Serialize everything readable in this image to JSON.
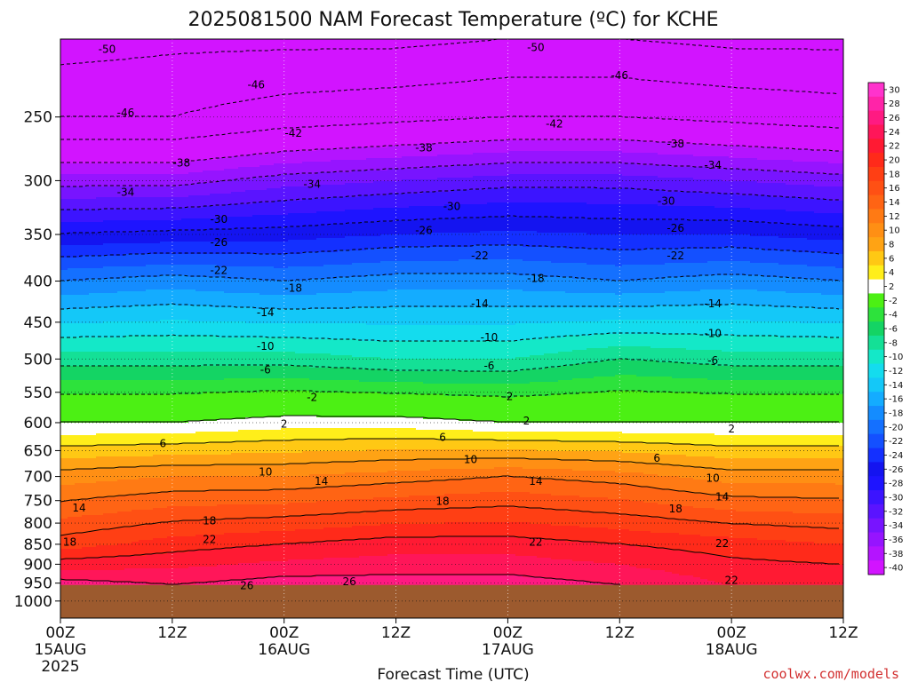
{
  "chart_data": {
    "type": "heatmap",
    "title": "2025081500 NAM Forecast Temperature (ºC) for KCHE",
    "xlabel": "Forecast Time (UTC)",
    "ylabel": "",
    "y_scale": "log-pressure (hPa, inverted)",
    "ylim": [
      1050,
      200
    ],
    "xlim": [
      0,
      84
    ],
    "x_ticks": [
      {
        "hour": 0,
        "label": "00Z",
        "sub": "15AUG",
        "sub2": "2025"
      },
      {
        "hour": 12,
        "label": "12Z"
      },
      {
        "hour": 24,
        "label": "00Z",
        "sub": "16AUG"
      },
      {
        "hour": 36,
        "label": "12Z"
      },
      {
        "hour": 48,
        "label": "00Z",
        "sub": "17AUG"
      },
      {
        "hour": 60,
        "label": "12Z"
      },
      {
        "hour": 72,
        "label": "00Z",
        "sub": "18AUG"
      },
      {
        "hour": 84,
        "label": "12Z"
      }
    ],
    "y_ticks": [
      250,
      300,
      350,
      400,
      450,
      500,
      550,
      600,
      650,
      700,
      750,
      800,
      850,
      900,
      950,
      1000
    ],
    "surface_pressure_hpa": 955,
    "grid": true,
    "colorbar": {
      "position": "right",
      "levels": [
        "30",
        "28",
        "26",
        "24",
        "22",
        "20",
        "18",
        "16",
        "14",
        "12",
        "10",
        "8",
        "6",
        "4",
        "2",
        "-2",
        "-4",
        "-6",
        "-8",
        "-10",
        "-12",
        "-14",
        "-16",
        "-18",
        "-20",
        "-22",
        "-24",
        "-26",
        "-28",
        "-30",
        "-32",
        "-34",
        "-36",
        "-38",
        "-40"
      ],
      "colors": [
        "#ff33cc",
        "#ff24a8",
        "#ff1a82",
        "#ff1659",
        "#ff1a33",
        "#ff2a1a",
        "#ff3f14",
        "#ff5014",
        "#ff6414",
        "#ff7a14",
        "#ff8f14",
        "#ffa314",
        "#ffc814",
        "#ffee1a",
        "#ffffff",
        "#4cf014",
        "#2de23c",
        "#14d464",
        "#14e096",
        "#14e8c8",
        "#14dcee",
        "#14c8f8",
        "#14acff",
        "#148cff",
        "#1470ff",
        "#1450ff",
        "#1430ff",
        "#1414f0",
        "#1e14ff",
        "#3c14ff",
        "#5a14ff",
        "#7814ff",
        "#9614ff",
        "#b414ff",
        "#d214ff"
      ]
    },
    "profiles": [
      {
        "hour": 0,
        "temps_c": [
          {
            "p": 955,
            "t": 27
          },
          {
            "p": 850,
            "t": 19
          },
          {
            "p": 700,
            "t": 11
          },
          {
            "p": 600,
            "t": 2
          },
          {
            "p": 500,
            "t": -7
          },
          {
            "p": 400,
            "t": -18
          },
          {
            "p": 300,
            "t": -35
          },
          {
            "p": 250,
            "t": -46
          },
          {
            "p": 200,
            "t": -52
          }
        ]
      },
      {
        "hour": 12,
        "temps_c": [
          {
            "p": 955,
            "t": 26
          },
          {
            "p": 850,
            "t": 21
          },
          {
            "p": 700,
            "t": 12
          },
          {
            "p": 600,
            "t": 2
          },
          {
            "p": 500,
            "t": -7
          },
          {
            "p": 400,
            "t": -17
          },
          {
            "p": 300,
            "t": -35
          },
          {
            "p": 250,
            "t": -46
          },
          {
            "p": 200,
            "t": -51
          }
        ]
      },
      {
        "hour": 24,
        "temps_c": [
          {
            "p": 955,
            "t": 27
          },
          {
            "p": 850,
            "t": 22
          },
          {
            "p": 700,
            "t": 12
          },
          {
            "p": 600,
            "t": 3
          },
          {
            "p": 500,
            "t": -7
          },
          {
            "p": 400,
            "t": -18
          },
          {
            "p": 300,
            "t": -33
          },
          {
            "p": 250,
            "t": -44
          },
          {
            "p": 200,
            "t": -51
          }
        ]
      },
      {
        "hour": 36,
        "temps_c": [
          {
            "p": 955,
            "t": 27
          },
          {
            "p": 850,
            "t": 23
          },
          {
            "p": 700,
            "t": 13
          },
          {
            "p": 600,
            "t": 3
          },
          {
            "p": 500,
            "t": -8
          },
          {
            "p": 400,
            "t": -17
          },
          {
            "p": 300,
            "t": -32
          },
          {
            "p": 250,
            "t": -43
          },
          {
            "p": 200,
            "t": -51
          }
        ]
      },
      {
        "hour": 48,
        "temps_c": [
          {
            "p": 955,
            "t": 27
          },
          {
            "p": 850,
            "t": 23
          },
          {
            "p": 700,
            "t": 14
          },
          {
            "p": 600,
            "t": 2
          },
          {
            "p": 500,
            "t": -8
          },
          {
            "p": 400,
            "t": -17
          },
          {
            "p": 300,
            "t": -31
          },
          {
            "p": 250,
            "t": -42
          },
          {
            "p": 200,
            "t": -50
          }
        ]
      },
      {
        "hour": 60,
        "temps_c": [
          {
            "p": 955,
            "t": 26
          },
          {
            "p": 850,
            "t": 22
          },
          {
            "p": 700,
            "t": 13
          },
          {
            "p": 600,
            "t": 2
          },
          {
            "p": 500,
            "t": -6
          },
          {
            "p": 400,
            "t": -18
          },
          {
            "p": 300,
            "t": -31
          },
          {
            "p": 250,
            "t": -42
          },
          {
            "p": 200,
            "t": -50
          }
        ]
      },
      {
        "hour": 72,
        "temps_c": [
          {
            "p": 955,
            "t": 24
          },
          {
            "p": 850,
            "t": 21
          },
          {
            "p": 700,
            "t": 11
          },
          {
            "p": 600,
            "t": 2
          },
          {
            "p": 500,
            "t": -7
          },
          {
            "p": 400,
            "t": -17
          },
          {
            "p": 300,
            "t": -32
          },
          {
            "p": 250,
            "t": -43
          },
          {
            "p": 200,
            "t": -51
          }
        ]
      },
      {
        "hour": 84,
        "temps_c": [
          {
            "p": 955,
            "t": 24
          },
          {
            "p": 850,
            "t": 20
          },
          {
            "p": 700,
            "t": 11
          },
          {
            "p": 600,
            "t": 2
          },
          {
            "p": 500,
            "t": -7
          },
          {
            "p": 400,
            "t": -18
          },
          {
            "p": 300,
            "t": -33
          },
          {
            "p": 250,
            "t": -44
          },
          {
            "p": 200,
            "t": -51
          }
        ]
      }
    ],
    "isotherm_labels": [
      {
        "hour": 5,
        "p": 206,
        "text": "-50"
      },
      {
        "hour": 51,
        "p": 205,
        "text": "-50"
      },
      {
        "hour": 21,
        "p": 228,
        "text": "-46"
      },
      {
        "hour": 60,
        "p": 222,
        "text": "-46"
      },
      {
        "hour": 7,
        "p": 247,
        "text": "-46"
      },
      {
        "hour": 25,
        "p": 262,
        "text": "-42"
      },
      {
        "hour": 53,
        "p": 255,
        "text": "-42"
      },
      {
        "hour": 13,
        "p": 285,
        "text": "-38"
      },
      {
        "hour": 39,
        "p": 273,
        "text": "-38"
      },
      {
        "hour": 66,
        "p": 270,
        "text": "-38"
      },
      {
        "hour": 7,
        "p": 310,
        "text": "-34"
      },
      {
        "hour": 27,
        "p": 303,
        "text": "-34"
      },
      {
        "hour": 70,
        "p": 287,
        "text": "-34"
      },
      {
        "hour": 17,
        "p": 335,
        "text": "-30"
      },
      {
        "hour": 42,
        "p": 323,
        "text": "-30"
      },
      {
        "hour": 65,
        "p": 318,
        "text": "-30"
      },
      {
        "hour": 17,
        "p": 358,
        "text": "-26"
      },
      {
        "hour": 39,
        "p": 346,
        "text": "-26"
      },
      {
        "hour": 66,
        "p": 344,
        "text": "-26"
      },
      {
        "hour": 17,
        "p": 388,
        "text": "-22"
      },
      {
        "hour": 45,
        "p": 372,
        "text": "-22"
      },
      {
        "hour": 66,
        "p": 372,
        "text": "-22"
      },
      {
        "hour": 25,
        "p": 408,
        "text": "-18"
      },
      {
        "hour": 51,
        "p": 397,
        "text": "-18"
      },
      {
        "hour": 22,
        "p": 438,
        "text": "-14"
      },
      {
        "hour": 45,
        "p": 427,
        "text": "-14"
      },
      {
        "hour": 70,
        "p": 427,
        "text": "-14"
      },
      {
        "hour": 22,
        "p": 482,
        "text": "-10"
      },
      {
        "hour": 46,
        "p": 470,
        "text": "-10"
      },
      {
        "hour": 70,
        "p": 465,
        "text": "-10"
      },
      {
        "hour": 22,
        "p": 516,
        "text": "-6"
      },
      {
        "hour": 46,
        "p": 510,
        "text": "-6"
      },
      {
        "hour": 70,
        "p": 502,
        "text": "-6"
      },
      {
        "hour": 27,
        "p": 558,
        "text": "-2"
      },
      {
        "hour": 48,
        "p": 557,
        "text": "-2"
      },
      {
        "hour": 24,
        "p": 602,
        "text": "2"
      },
      {
        "hour": 50,
        "p": 597,
        "text": "2"
      },
      {
        "hour": 72,
        "p": 611,
        "text": "2"
      },
      {
        "hour": 11,
        "p": 637,
        "text": "6"
      },
      {
        "hour": 41,
        "p": 626,
        "text": "6"
      },
      {
        "hour": 64,
        "p": 664,
        "text": "6"
      },
      {
        "hour": 22,
        "p": 691,
        "text": "10"
      },
      {
        "hour": 44,
        "p": 667,
        "text": "10"
      },
      {
        "hour": 70,
        "p": 703,
        "text": "10"
      },
      {
        "hour": 28,
        "p": 710,
        "text": "14"
      },
      {
        "hour": 51,
        "p": 710,
        "text": "14"
      },
      {
        "hour": 71,
        "p": 742,
        "text": "14"
      },
      {
        "hour": 2,
        "p": 766,
        "text": "14"
      },
      {
        "hour": 16,
        "p": 795,
        "text": "18"
      },
      {
        "hour": 41,
        "p": 752,
        "text": "18"
      },
      {
        "hour": 66,
        "p": 768,
        "text": "18"
      },
      {
        "hour": 1,
        "p": 845,
        "text": "18"
      },
      {
        "hour": 16,
        "p": 838,
        "text": "22"
      },
      {
        "hour": 51,
        "p": 845,
        "text": "22"
      },
      {
        "hour": 71,
        "p": 848,
        "text": "22"
      },
      {
        "hour": 72,
        "p": 942,
        "text": "22"
      },
      {
        "hour": 20,
        "p": 957,
        "text": "26"
      },
      {
        "hour": 31,
        "p": 946,
        "text": "26"
      }
    ]
  },
  "credit": "coolwx.com/models"
}
